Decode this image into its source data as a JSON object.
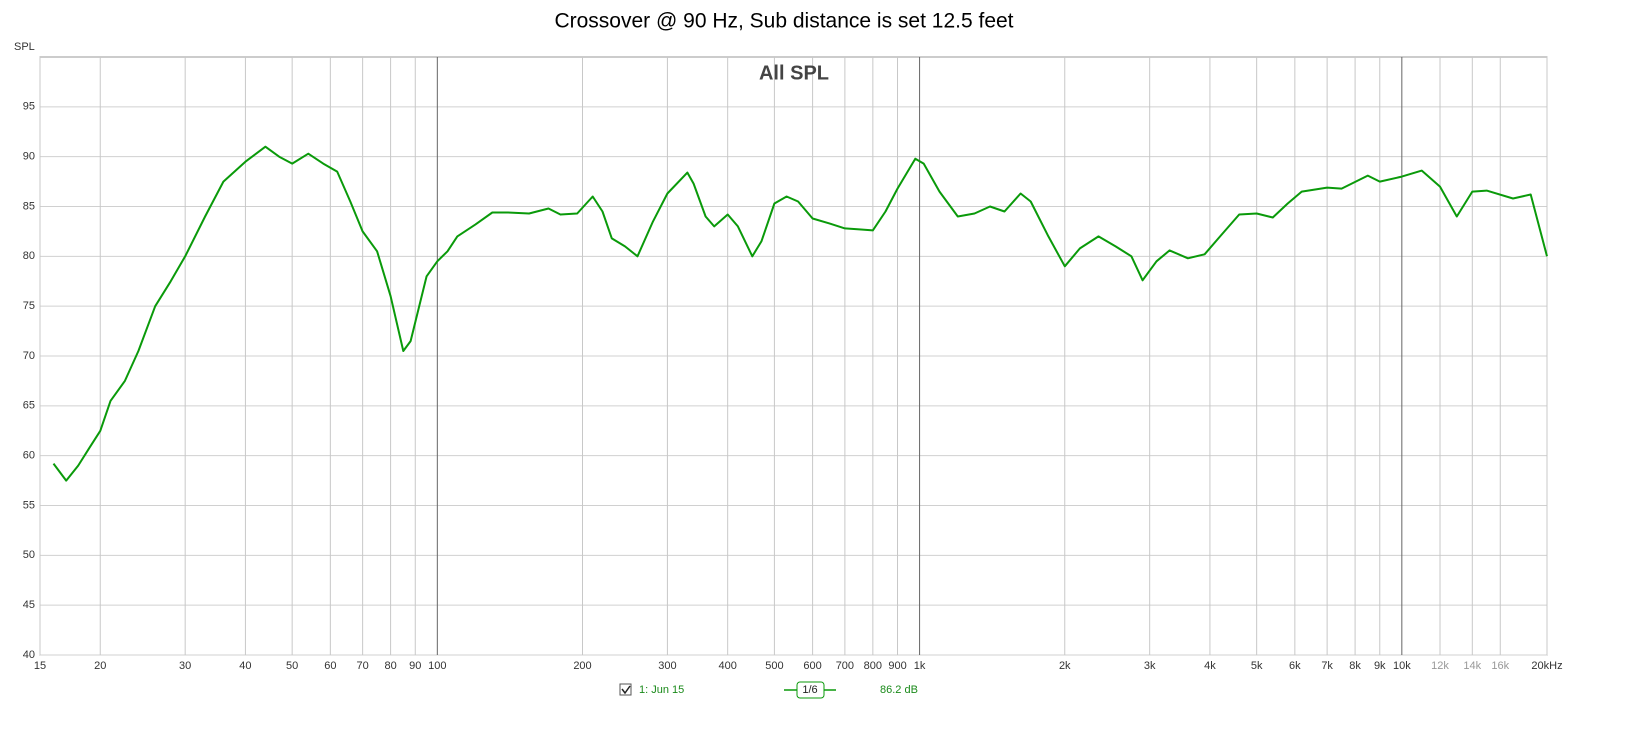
{
  "chart_data": {
    "type": "line",
    "title": "Crossover @ 90 Hz, Sub distance is set 12.5 feet",
    "subtitle": "All SPL",
    "y_label": "SPL",
    "log_x": true,
    "grid": true,
    "xlim": [
      15,
      20000
    ],
    "ylim": [
      40,
      100
    ],
    "yticks": [
      40,
      45,
      50,
      55,
      60,
      65,
      70,
      75,
      80,
      85,
      90,
      95
    ],
    "xticks": [
      15,
      20,
      30,
      40,
      50,
      60,
      70,
      80,
      90,
      100,
      200,
      300,
      400,
      500,
      600,
      700,
      800,
      900,
      {
        "value": 1000,
        "label": "1k"
      },
      {
        "value": 2000,
        "label": "2k"
      },
      {
        "value": 3000,
        "label": "3k"
      },
      {
        "value": 4000,
        "label": "4k"
      },
      {
        "value": 5000,
        "label": "5k"
      },
      {
        "value": 6000,
        "label": "6k"
      },
      {
        "value": 7000,
        "label": "7k"
      },
      {
        "value": 8000,
        "label": "8k"
      },
      {
        "value": 9000,
        "label": "9k"
      },
      {
        "value": 10000,
        "label": "10k"
      },
      {
        "value": 12000,
        "label": "12k"
      },
      {
        "value": 14000,
        "label": "14k"
      },
      {
        "value": 16000,
        "label": "16k"
      },
      {
        "value": 20000,
        "label": "20kHz"
      }
    ],
    "x": [
      16,
      17,
      18,
      19,
      20,
      21,
      22.5,
      24,
      26,
      28,
      30,
      33,
      36,
      40,
      44,
      47,
      50,
      54,
      58,
      62,
      66,
      70,
      75,
      80,
      85,
      88,
      95,
      100,
      105,
      110,
      120,
      130,
      140,
      155,
      170,
      180,
      195,
      210,
      220,
      230,
      245,
      260,
      280,
      300,
      330,
      340,
      360,
      375,
      400,
      420,
      450,
      470,
      500,
      530,
      560,
      600,
      650,
      700,
      750,
      800,
      850,
      900,
      980,
      1020,
      1100,
      1200,
      1300,
      1400,
      1500,
      1620,
      1700,
      1850,
      2000,
      2150,
      2350,
      2550,
      2750,
      2900,
      3100,
      3300,
      3600,
      3900,
      4200,
      4600,
      5000,
      5400,
      5800,
      6200,
      7000,
      7500,
      8500,
      9000,
      10000,
      11000,
      12000,
      13000,
      14000,
      15000,
      17000,
      18500,
      20000
    ],
    "series": [
      {
        "name": "1: Jun 15",
        "color": "#0a9a0a",
        "values": [
          59.2,
          57.5,
          59,
          60.8,
          62.5,
          65.5,
          67.5,
          70.5,
          75,
          77.5,
          80,
          84,
          87.5,
          89.5,
          91,
          90,
          89.3,
          90.3,
          89.3,
          88.5,
          85.5,
          82.5,
          80.5,
          76,
          70.5,
          71.5,
          78,
          79.5,
          80.5,
          82,
          83.2,
          84.4,
          84.4,
          84.3,
          84.8,
          84.2,
          84.3,
          86,
          84.5,
          81.8,
          81,
          80,
          83.5,
          86.3,
          88.4,
          87.3,
          84,
          83,
          84.2,
          83,
          80,
          81.5,
          85.3,
          86,
          85.5,
          83.8,
          83.3,
          82.8,
          82.7,
          82.6,
          84.5,
          86.8,
          89.8,
          89.3,
          86.5,
          84,
          84.3,
          85,
          84.5,
          86.3,
          85.5,
          82,
          79,
          80.8,
          82,
          81,
          80,
          77.6,
          79.5,
          80.6,
          79.8,
          80.2,
          82,
          84.2,
          84.3,
          83.9,
          85.3,
          86.5,
          86.9,
          86.8,
          88.1,
          87.5,
          88,
          88.6,
          87,
          84,
          86.5,
          86.6,
          85.8,
          86.2,
          80
        ]
      }
    ],
    "smoothing": "1/6",
    "legend_value": "86.2 dB"
  }
}
